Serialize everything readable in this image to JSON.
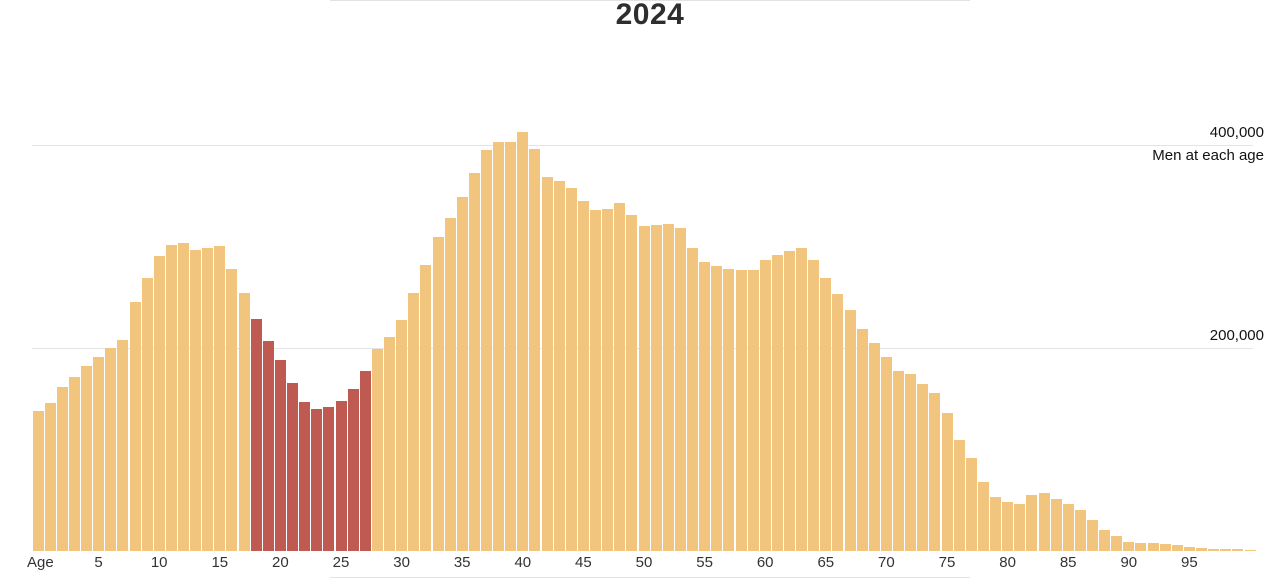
{
  "chart_data": {
    "type": "bar",
    "title": "2024",
    "x_label": "Age",
    "x_range": [
      0,
      100
    ],
    "right_axis_note": "Men at each age",
    "y_gridlines": [
      {
        "value": 200000,
        "label": "200,000"
      },
      {
        "value": 400000,
        "label": "400,000"
      }
    ],
    "x_ticks": [
      5,
      10,
      15,
      20,
      25,
      30,
      35,
      40,
      45,
      50,
      55,
      60,
      65,
      70,
      75,
      80,
      85,
      90,
      95
    ],
    "highlight_age_range": [
      18,
      27
    ],
    "values_by_age": [
      138000,
      146000,
      162000,
      171000,
      182000,
      191000,
      200000,
      208000,
      245000,
      269000,
      291000,
      301000,
      303000,
      297000,
      299000,
      300000,
      278000,
      254000,
      229000,
      207000,
      188000,
      166000,
      147000,
      140000,
      142000,
      148000,
      160000,
      177000,
      199000,
      211000,
      228000,
      254000,
      282000,
      309000,
      328000,
      349000,
      372000,
      395000,
      403000,
      403000,
      413000,
      396000,
      368000,
      365000,
      358000,
      345000,
      336000,
      337000,
      343000,
      331000,
      320000,
      321000,
      322000,
      318000,
      299000,
      285000,
      281000,
      278000,
      277000,
      277000,
      287000,
      292000,
      296000,
      299000,
      287000,
      269000,
      253000,
      237000,
      219000,
      205000,
      191000,
      177000,
      174000,
      165000,
      156000,
      136000,
      109000,
      92000,
      68000,
      53000,
      48000,
      46000,
      55000,
      57000,
      51000,
      46000,
      40000,
      31000,
      21000,
      15000,
      9000,
      8000,
      8000,
      7000,
      6000,
      4000,
      3000,
      2000,
      2000,
      1500,
      1000
    ],
    "colors": {
      "bar": "#F2C57E",
      "bar_highlight": "#BE5A52",
      "gridline": "#E4E4E4",
      "text": "#333333",
      "title": "#2E2E2E"
    }
  }
}
